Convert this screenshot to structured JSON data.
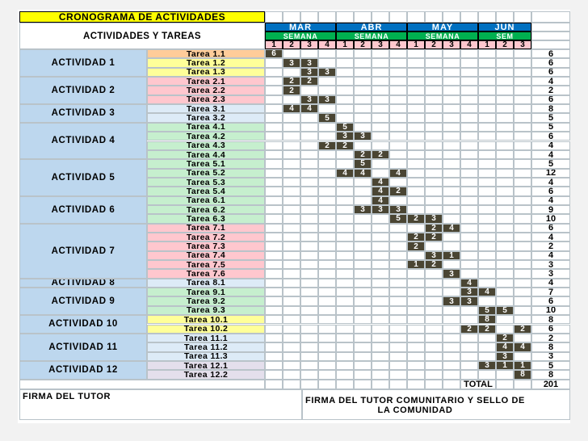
{
  "title": "CRONOGRAMA DE ACTIVIDADES",
  "header_label": "ACTIVIDADES Y TAREAS",
  "months": [
    "MAR",
    "ABR",
    "MAY",
    "JUN"
  ],
  "month_weeks": [
    4,
    4,
    4,
    3
  ],
  "semana_labels": [
    "SEMANA",
    "SEMANA",
    "SEMANA",
    "SEM"
  ],
  "week_numbers": [
    "1",
    "2",
    "3",
    "4",
    "1",
    "2",
    "3",
    "4",
    "1",
    "2",
    "3",
    "4",
    "1",
    "2",
    "3"
  ],
  "first_cell_value": "6",
  "activities": [
    {
      "label": "ACTIVIDAD 1",
      "color": "#bdd7ee",
      "tasks": [
        {
          "name": "Tarea 1.1",
          "color": "#ffcc99",
          "marks": [],
          "total": "6"
        },
        {
          "name": "Tarea 1.2",
          "color": "#ffff99",
          "marks": [
            [
              1,
              "3"
            ],
            [
              2,
              "3"
            ]
          ],
          "total": "6"
        },
        {
          "name": "Tarea 1.3",
          "color": "#ffff99",
          "marks": [
            [
              2,
              "3"
            ],
            [
              3,
              "3"
            ]
          ],
          "total": "6"
        }
      ]
    },
    {
      "label": "ACTIVIDAD 2",
      "color": "#bdd7ee",
      "tasks": [
        {
          "name": "Tarea 2.1",
          "color": "#ffc7ce",
          "marks": [
            [
              1,
              "2"
            ],
            [
              2,
              "2"
            ]
          ],
          "total": "4"
        },
        {
          "name": "Tarea 2.2",
          "color": "#ffc7ce",
          "marks": [
            [
              1,
              "2"
            ]
          ],
          "total": "2"
        },
        {
          "name": "Tarea 2.3",
          "color": "#ffc7ce",
          "marks": [
            [
              2,
              "3"
            ],
            [
              3,
              "3"
            ]
          ],
          "total": "6"
        }
      ]
    },
    {
      "label": "ACTIVIDAD 3",
      "color": "#bdd7ee",
      "tasks": [
        {
          "name": "Tarea 3.1",
          "color": "#ddebf7",
          "marks": [
            [
              1,
              "4"
            ],
            [
              2,
              "4"
            ]
          ],
          "total": "8"
        },
        {
          "name": "Tarea 3.2",
          "color": "#ddebf7",
          "marks": [
            [
              3,
              "5"
            ]
          ],
          "total": "5"
        }
      ]
    },
    {
      "label": "ACTIVIDAD 4",
      "color": "#bdd7ee",
      "tasks": [
        {
          "name": "Tarea 4.1",
          "color": "#c6efce",
          "marks": [
            [
              4,
              "5"
            ]
          ],
          "total": "5"
        },
        {
          "name": "Tarea 4.2",
          "color": "#c6efce",
          "marks": [
            [
              4,
              "3"
            ],
            [
              5,
              "3"
            ]
          ],
          "total": "6"
        },
        {
          "name": "Tarea 4.3",
          "color": "#c6efce",
          "marks": [
            [
              3,
              "2"
            ],
            [
              4,
              "2"
            ]
          ],
          "total": "4"
        },
        {
          "name": "Tarea 4.4",
          "color": "#c6efce",
          "marks": [
            [
              5,
              "2"
            ],
            [
              6,
              "2"
            ]
          ],
          "total": "4"
        }
      ]
    },
    {
      "label": "ACTIVIDAD 5",
      "color": "#bdd7ee",
      "tasks": [
        {
          "name": "Tarea 5.1",
          "color": "#c6efce",
          "marks": [
            [
              5,
              "5"
            ]
          ],
          "total": "5"
        },
        {
          "name": "Tarea 5.2",
          "color": "#c6efce",
          "marks": [
            [
              4,
              "4"
            ],
            [
              5,
              "4"
            ],
            [
              7,
              "4"
            ]
          ],
          "total": "12"
        },
        {
          "name": "Tarea 5.3",
          "color": "#c6efce",
          "marks": [
            [
              6,
              "4"
            ]
          ],
          "total": "4"
        },
        {
          "name": "Tarea 5.4",
          "color": "#c6efce",
          "marks": [
            [
              6,
              "4"
            ],
            [
              7,
              "2"
            ]
          ],
          "total": "6"
        }
      ]
    },
    {
      "label": "ACTIVIDAD 6",
      "color": "#bdd7ee",
      "tasks": [
        {
          "name": "Tarea 6.1",
          "color": "#c6efce",
          "marks": [
            [
              6,
              "4"
            ]
          ],
          "total": "4"
        },
        {
          "name": "Tarea 6.2",
          "color": "#c6efce",
          "marks": [
            [
              5,
              "3"
            ],
            [
              6,
              "3"
            ],
            [
              7,
              "3"
            ]
          ],
          "total": "9"
        },
        {
          "name": "Tarea 6.3",
          "color": "#c6efce",
          "marks": [
            [
              7,
              "5"
            ],
            [
              8,
              "2"
            ],
            [
              9,
              "3"
            ]
          ],
          "total": "10"
        }
      ]
    },
    {
      "label": "ACTIVIDAD 7",
      "color": "#bdd7ee",
      "tasks": [
        {
          "name": "Tarea 7.1",
          "color": "#ffc7ce",
          "marks": [
            [
              9,
              "2"
            ],
            [
              10,
              "4"
            ]
          ],
          "total": "6"
        },
        {
          "name": "Tarea 7.2",
          "color": "#ffc7ce",
          "marks": [
            [
              8,
              "2"
            ],
            [
              9,
              "2"
            ]
          ],
          "total": "4"
        },
        {
          "name": "Tarea 7.3",
          "color": "#ffc7ce",
          "marks": [
            [
              8,
              "2"
            ]
          ],
          "total": "2"
        },
        {
          "name": "Tarea 7.4",
          "color": "#ffc7ce",
          "marks": [
            [
              9,
              "3"
            ],
            [
              10,
              "1"
            ]
          ],
          "total": "4"
        },
        {
          "name": "Tarea 7.5",
          "color": "#ffc7ce",
          "marks": [
            [
              8,
              "1"
            ],
            [
              9,
              "2"
            ]
          ],
          "total": "3"
        },
        {
          "name": "Tarea 7.6",
          "color": "#ffc7ce",
          "marks": [
            [
              10,
              "3"
            ]
          ],
          "total": "3"
        }
      ]
    },
    {
      "label": "ACTIVIDAD 8",
      "color": "#bdd7ee",
      "tasks": [
        {
          "name": "Tarea 8.1",
          "color": "#ddebf7",
          "marks": [
            [
              11,
              "4"
            ]
          ],
          "total": "4"
        }
      ]
    },
    {
      "label": "ACTIVIDAD 9",
      "color": "#bdd7ee",
      "tasks": [
        {
          "name": "Tarea 9.1",
          "color": "#c6efce",
          "marks": [
            [
              11,
              "3"
            ],
            [
              12,
              "4"
            ]
          ],
          "total": "7"
        },
        {
          "name": "Tarea 9.2",
          "color": "#c6efce",
          "marks": [
            [
              10,
              "3"
            ],
            [
              11,
              "3"
            ]
          ],
          "total": "6"
        },
        {
          "name": "Tarea 9.3",
          "color": "#c6efce",
          "marks": [
            [
              12,
              "5"
            ],
            [
              13,
              "5"
            ]
          ],
          "total": "10"
        }
      ]
    },
    {
      "label": "ACTIVIDAD 10",
      "color": "#bdd7ee",
      "tasks": [
        {
          "name": "Tarea 10.1",
          "color": "#ffff99",
          "marks": [
            [
              12,
              "8"
            ]
          ],
          "total": "8"
        },
        {
          "name": "Tarea 10.2",
          "color": "#ffff99",
          "marks": [
            [
              11,
              "2"
            ],
            [
              12,
              "2"
            ],
            [
              14,
              "2"
            ]
          ],
          "total": "6"
        }
      ]
    },
    {
      "label": "ACTIVIDAD 11",
      "color": "#bdd7ee",
      "tasks": [
        {
          "name": "Tarea 11.1",
          "color": "#ddebf7",
          "marks": [
            [
              13,
              "2"
            ]
          ],
          "total": "2"
        },
        {
          "name": "Tarea 11.2",
          "color": "#ddebf7",
          "marks": [
            [
              13,
              "4"
            ],
            [
              14,
              "4"
            ]
          ],
          "total": "8"
        },
        {
          "name": "Tarea 11.3",
          "color": "#ddebf7",
          "marks": [
            [
              13,
              "3"
            ]
          ],
          "total": "3"
        }
      ]
    },
    {
      "label": "ACTIVIDAD 12",
      "color": "#bdd7ee",
      "tasks": [
        {
          "name": "Tarea 12.1",
          "color": "#e4dfec",
          "marks": [
            [
              12,
              "3"
            ],
            [
              13,
              "1"
            ],
            [
              14,
              "1"
            ]
          ],
          "total": "5"
        },
        {
          "name": "Tarea 12.2",
          "color": "#e4dfec",
          "marks": [
            [
              14,
              "8"
            ]
          ],
          "total": "8"
        }
      ]
    }
  ],
  "total_label": "TOTAL",
  "total_value": "201",
  "footer": {
    "tutor_signature": "FIRMA DEL TUTOR",
    "community_signature": "FIRMA DEL TUTOR COMUNITARIO Y SELLO DE LA COMUNIDAD"
  },
  "colors": {
    "title_bg": "#ffff00",
    "month_bg": "#0070c0",
    "semana_bg": "#00b050",
    "activity_bg": "#bdd7ee",
    "week_number_bg": "#ffc7ce",
    "mark_bg": "#4a4533",
    "mark_text": "#ffffff"
  }
}
